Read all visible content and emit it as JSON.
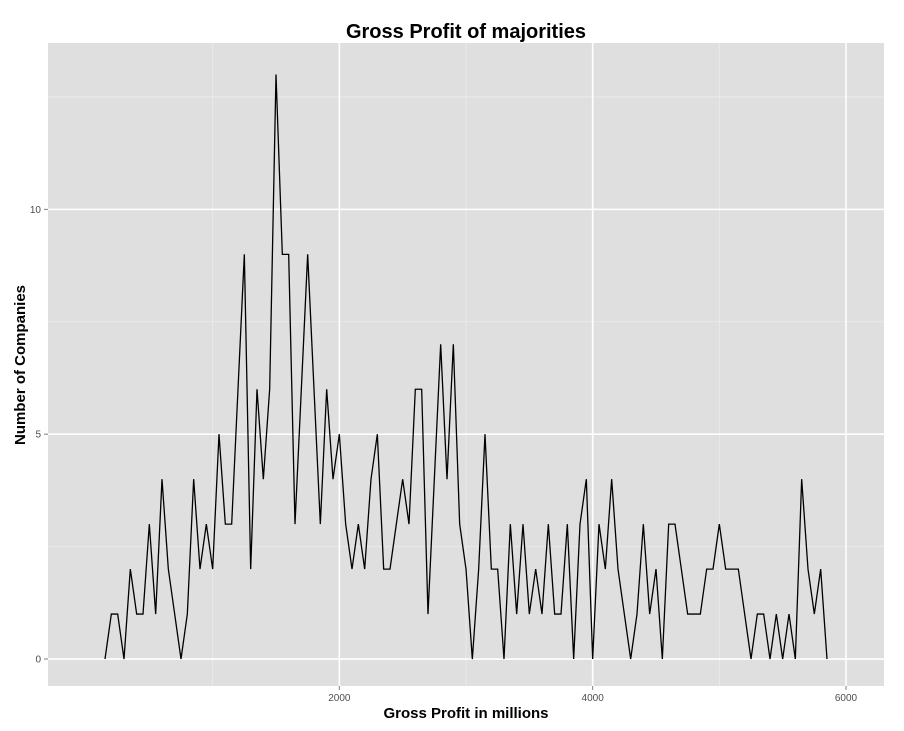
{
  "colors": {
    "panel_background": "#dfdfdf",
    "major_grid": "#ffffff",
    "minor_grid": "#ececec",
    "line": "#000000",
    "tick_text": "#4d4d4d"
  },
  "chart_data": {
    "type": "line",
    "title": "Gross Profit of majorities",
    "xlabel": "Gross Profit in millions",
    "ylabel": "Number of Companies",
    "xlim": [
      -300,
      6300
    ],
    "ylim": [
      -0.6,
      13.7
    ],
    "x_ticks": [
      2000,
      4000,
      6000
    ],
    "x_tick_labels": [
      "2000",
      "4000",
      "6000"
    ],
    "y_ticks": [
      0,
      5,
      10
    ],
    "y_tick_labels": [
      "0",
      "5",
      "10"
    ],
    "grid": true,
    "x_step": 50,
    "x_start": 150,
    "series": [
      {
        "name": "",
        "values": [
          0,
          1,
          1,
          0,
          2,
          1,
          1,
          3,
          1,
          4,
          2,
          1,
          0,
          1,
          4,
          2,
          3,
          2,
          5,
          3,
          3,
          6,
          9,
          2,
          6,
          4,
          6,
          13,
          9,
          9,
          3,
          6,
          9,
          6,
          3,
          6,
          4,
          5,
          3,
          2,
          3,
          2,
          4,
          5,
          2,
          2,
          3,
          4,
          3,
          6,
          6,
          1,
          4,
          7,
          4,
          7,
          3,
          2,
          0,
          2,
          5,
          2,
          2,
          0,
          3,
          1,
          3,
          1,
          2,
          1,
          3,
          1,
          1,
          3,
          0,
          3,
          4,
          0,
          3,
          2,
          4,
          2,
          1,
          0,
          1,
          3,
          1,
          2,
          0,
          3,
          3,
          2,
          1,
          1,
          1,
          2,
          2,
          3,
          2,
          2,
          2,
          1,
          0,
          1,
          1,
          0,
          1,
          0,
          1,
          0,
          4,
          2,
          1,
          2,
          0
        ]
      }
    ]
  }
}
